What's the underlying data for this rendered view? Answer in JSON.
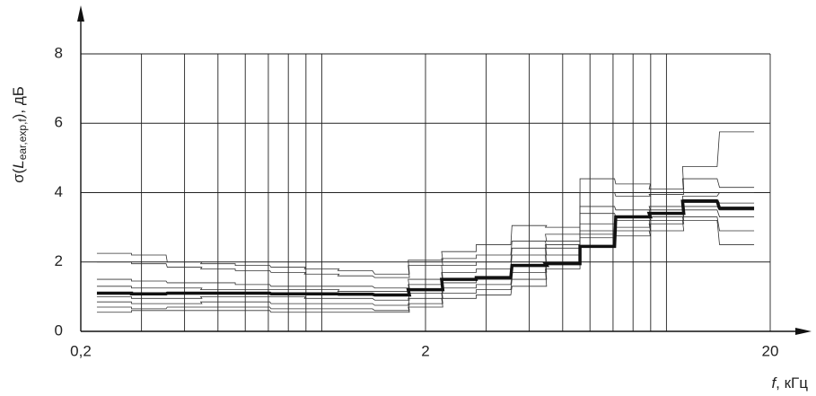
{
  "chart_data": {
    "type": "step-line",
    "ylabel": [
      "σ(",
      "L",
      "ear,exp,f",
      "), дБ"
    ],
    "xlabel": [
      "f",
      ", кГц"
    ],
    "log_x": true,
    "xlim": [
      0.2,
      20
    ],
    "ylim": [
      0,
      8
    ],
    "xticks": [
      {
        "value": 0.2,
        "label": "0,2"
      },
      2,
      20
    ],
    "xminor": [
      0.3,
      0.4,
      0.5,
      0.6,
      0.7,
      0.8,
      0.9,
      1,
      3,
      4,
      5,
      6,
      7,
      8,
      9,
      10
    ],
    "yticks": [
      0,
      2,
      4,
      6,
      8
    ],
    "grid": true,
    "x": [
      0.25,
      0.315,
      0.4,
      0.5,
      0.63,
      0.8,
      1,
      1.25,
      1.6,
      2,
      2.5,
      3.15,
      4,
      5,
      6.3,
      8,
      10,
      12.5,
      16
    ],
    "series": [
      {
        "color": "#333333",
        "width": 0.8,
        "values": [
          2.25,
          2.2,
          2.0,
          1.95,
          1.9,
          1.85,
          1.8,
          1.75,
          1.65,
          2.05,
          2.3,
          2.5,
          3.05,
          3.0,
          4.4,
          4.25,
          4.1,
          4.75,
          5.75
        ]
      },
      {
        "color": "#333333",
        "width": 0.8,
        "values": [
          2.0,
          1.95,
          1.85,
          1.8,
          1.75,
          1.7,
          1.65,
          1.6,
          1.55,
          1.9,
          2.1,
          2.2,
          2.6,
          2.8,
          4.0,
          3.9,
          3.95,
          4.4,
          4.15
        ]
      },
      {
        "color": "#333333",
        "width": 0.8,
        "values": [
          1.5,
          1.45,
          1.4,
          1.4,
          1.35,
          1.3,
          1.3,
          1.3,
          1.25,
          1.5,
          1.9,
          2.0,
          2.4,
          2.6,
          3.6,
          3.5,
          3.6,
          3.9,
          4.0
        ]
      },
      {
        "color": "#333333",
        "width": 0.8,
        "values": [
          1.3,
          1.25,
          1.25,
          1.2,
          1.2,
          1.2,
          1.2,
          1.15,
          1.15,
          1.35,
          1.7,
          1.8,
          2.2,
          2.5,
          3.4,
          3.3,
          3.5,
          3.8,
          3.7
        ]
      },
      {
        "color": "#333333",
        "width": 0.8,
        "values": [
          1.0,
          0.95,
          0.95,
          1.0,
          1.0,
          1.0,
          0.95,
          0.95,
          0.9,
          1.1,
          1.4,
          1.5,
          1.9,
          2.4,
          3.1,
          3.2,
          3.3,
          3.6,
          3.5
        ]
      },
      {
        "color": "#333333",
        "width": 0.8,
        "values": [
          0.85,
          0.8,
          0.8,
          0.85,
          0.85,
          0.8,
          0.8,
          0.8,
          0.75,
          0.95,
          1.25,
          1.35,
          1.7,
          2.2,
          2.9,
          3.0,
          3.2,
          3.5,
          3.3
        ]
      },
      {
        "color": "#333333",
        "width": 0.8,
        "values": [
          0.7,
          0.65,
          0.7,
          0.7,
          0.7,
          0.65,
          0.65,
          0.65,
          0.6,
          0.8,
          1.1,
          1.2,
          1.5,
          2.0,
          2.8,
          2.9,
          3.1,
          3.3,
          2.9
        ]
      },
      {
        "color": "#333333",
        "width": 0.8,
        "values": [
          0.55,
          0.6,
          0.6,
          0.6,
          0.6,
          0.55,
          0.55,
          0.55,
          0.55,
          0.7,
          0.95,
          1.05,
          1.3,
          1.8,
          2.7,
          2.75,
          2.9,
          3.2,
          2.5
        ]
      },
      {
        "color": "#111111",
        "width": 3.5,
        "values": [
          1.1,
          1.08,
          1.1,
          1.1,
          1.1,
          1.08,
          1.08,
          1.07,
          1.05,
          1.2,
          1.5,
          1.55,
          1.9,
          1.95,
          2.45,
          3.3,
          3.4,
          3.75,
          3.55
        ]
      }
    ]
  }
}
